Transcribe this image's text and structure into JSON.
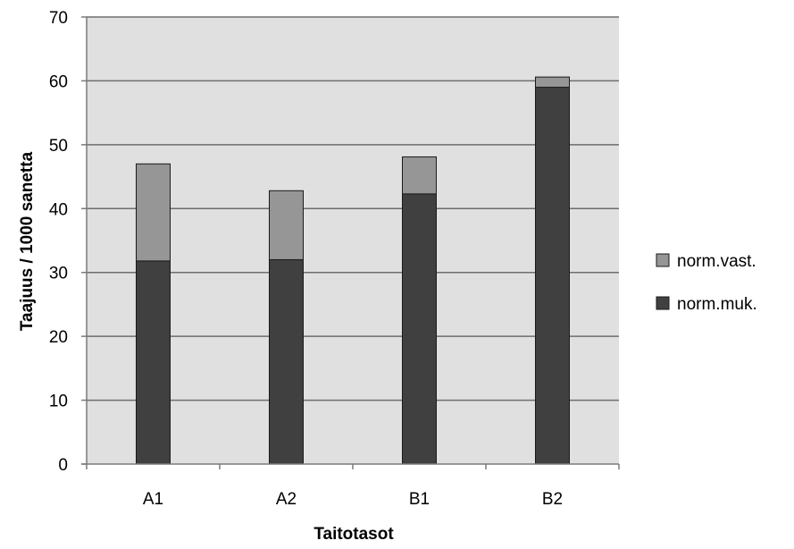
{
  "chart_data": {
    "type": "bar",
    "stacked": true,
    "title": "",
    "xlabel": "Taitotasot",
    "ylabel": "Taajuus  / 1000 sanetta",
    "categories": [
      "A1",
      "A2",
      "B1",
      "B2"
    ],
    "ylim": [
      0,
      70
    ],
    "yticks": [
      0,
      10,
      20,
      30,
      40,
      50,
      60,
      70
    ],
    "grid": true,
    "legend_position": "right",
    "series": [
      {
        "name": "norm.muk.",
        "color": "#404040",
        "values": [
          31.8,
          32.0,
          42.3,
          59.0
        ]
      },
      {
        "name": "norm.vast.",
        "color": "#969696",
        "values": [
          15.2,
          10.8,
          5.8,
          1.6
        ]
      }
    ],
    "colors": {
      "plot_background": "#e0e0e0",
      "gridline": "#6e6e6e"
    }
  }
}
